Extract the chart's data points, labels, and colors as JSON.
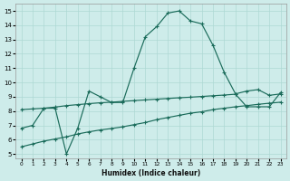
{
  "xlabel": "Humidex (Indice chaleur)",
  "xlim": [
    -0.5,
    23.5
  ],
  "ylim": [
    4.7,
    15.5
  ],
  "xticks": [
    0,
    1,
    2,
    3,
    4,
    5,
    6,
    7,
    8,
    9,
    10,
    11,
    12,
    13,
    14,
    15,
    16,
    17,
    18,
    19,
    20,
    21,
    22,
    23
  ],
  "yticks": [
    5,
    6,
    7,
    8,
    9,
    10,
    11,
    12,
    13,
    14,
    15
  ],
  "bg_color": "#ceecea",
  "grid_color": "#aed8d4",
  "line_color": "#1a6b5a",
  "line1_y": [
    6.8,
    7.0,
    8.2,
    8.2,
    5.0,
    6.8,
    9.4,
    9.0,
    8.6,
    8.6,
    11.0,
    13.2,
    13.9,
    14.85,
    15.0,
    14.3,
    14.1,
    12.6,
    10.7,
    9.2,
    9.4,
    9.5,
    9.1,
    9.2
  ],
  "line2_y": [
    8.1,
    8.15,
    8.2,
    8.28,
    8.38,
    8.45,
    8.52,
    8.58,
    8.62,
    8.68,
    8.73,
    8.78,
    8.83,
    8.88,
    8.93,
    8.97,
    9.02,
    9.07,
    9.12,
    9.18,
    8.3,
    8.3,
    8.3,
    9.3
  ],
  "line3_y": [
    5.5,
    5.7,
    5.9,
    6.05,
    6.2,
    6.4,
    6.55,
    6.68,
    6.78,
    6.9,
    7.05,
    7.2,
    7.4,
    7.55,
    7.7,
    7.85,
    7.95,
    8.1,
    8.2,
    8.3,
    8.38,
    8.47,
    8.55,
    8.62
  ]
}
